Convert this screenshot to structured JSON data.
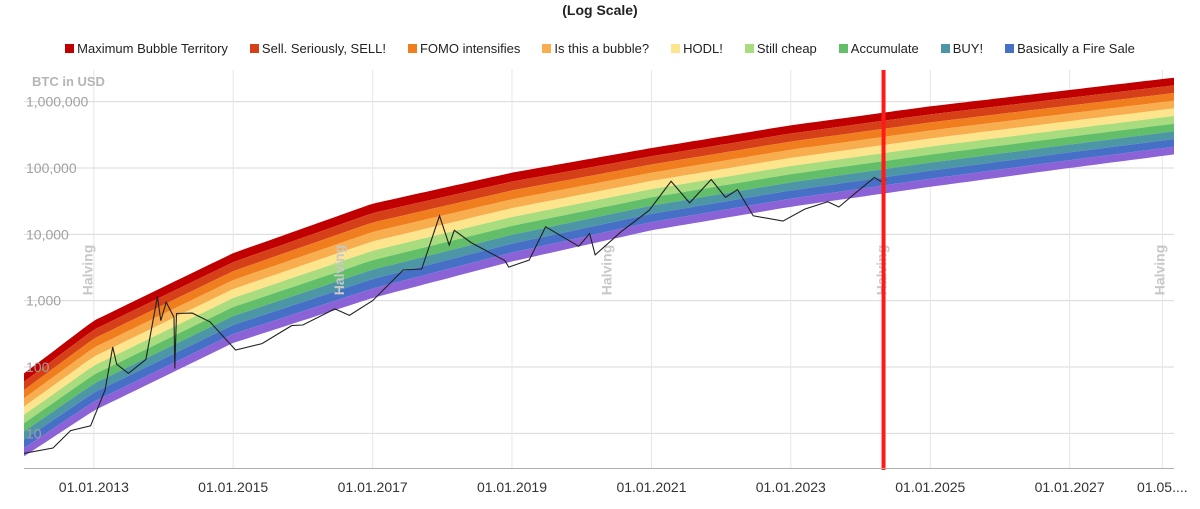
{
  "chart_data": {
    "type": "area",
    "title": "(Log Scale)",
    "scale": "log",
    "ylabel": "BTC in USD",
    "ylim": [
      3,
      3000000
    ],
    "xlim": [
      "2012-01-01",
      "2028-07-01"
    ],
    "x_tick_labels": [
      "01.01.2013",
      "01.01.2015",
      "01.01.2017",
      "01.01.2019",
      "01.01.2021",
      "01.01.2023",
      "01.01.2025",
      "01.01.2027",
      "01.05...."
    ],
    "y_tick_labels": [
      "1,000,000",
      "100,000",
      "10,000",
      "1,000",
      "100",
      "10"
    ],
    "y_ticks": [
      1000000,
      100000,
      10000,
      1000,
      100,
      10
    ],
    "halving_label": "Halving",
    "halving_dates": [
      "2012-11-28",
      "2016-07-09",
      "2020-05-11",
      "2024-04-20",
      "2028-04-15"
    ],
    "current_marker_date": "2024-05-01",
    "grid": true,
    "legend_position": "top",
    "bands": [
      {
        "name": "Maximum Bubble Territory",
        "color": "#c00000"
      },
      {
        "name": "Sell. Seriously, SELL!",
        "color": "#d64018"
      },
      {
        "name": "FOMO intensifies",
        "color": "#f07e1e"
      },
      {
        "name": "Is this a bubble?",
        "color": "#f8ad4e"
      },
      {
        "name": "HODL!",
        "color": "#fde58d"
      },
      {
        "name": "Still cheap",
        "color": "#a8dc7e"
      },
      {
        "name": "Accumulate",
        "color": "#62be68"
      },
      {
        "name": "BUY!",
        "color": "#4c96a6"
      },
      {
        "name": "Basically a Fire Sale",
        "color": "#4670c6"
      }
    ],
    "band_bottom_color": "#8b63d6",
    "rainbow_bottom": [
      {
        "x": "2012-01-01",
        "y": 4.5
      },
      {
        "x": "2013-01-01",
        "y": 22
      },
      {
        "x": "2015-01-01",
        "y": 230
      },
      {
        "x": "2017-01-01",
        "y": 1100
      },
      {
        "x": "2019-01-01",
        "y": 3900
      },
      {
        "x": "2021-01-01",
        "y": 11500
      },
      {
        "x": "2023-01-01",
        "y": 26000
      },
      {
        "x": "2025-01-01",
        "y": 52000
      },
      {
        "x": "2027-01-01",
        "y": 100000
      },
      {
        "x": "2028-07-01",
        "y": 160000
      }
    ],
    "rainbow_top": [
      {
        "x": "2012-01-01",
        "y": 80
      },
      {
        "x": "2013-01-01",
        "y": 500
      },
      {
        "x": "2015-01-01",
        "y": 5200
      },
      {
        "x": "2017-01-01",
        "y": 29000
      },
      {
        "x": "2019-01-01",
        "y": 85000
      },
      {
        "x": "2021-01-01",
        "y": 200000
      },
      {
        "x": "2023-01-01",
        "y": 440000
      },
      {
        "x": "2025-01-01",
        "y": 850000
      },
      {
        "x": "2027-01-01",
        "y": 1500000
      },
      {
        "x": "2028-07-01",
        "y": 2300000
      }
    ],
    "series": [
      {
        "name": "BTC in USD",
        "color": "#222222",
        "points": [
          {
            "x": "2012-01-01",
            "y": 5
          },
          {
            "x": "2012-06-01",
            "y": 6
          },
          {
            "x": "2012-09-01",
            "y": 11
          },
          {
            "x": "2012-12-15",
            "y": 13
          },
          {
            "x": "2013-03-01",
            "y": 45
          },
          {
            "x": "2013-04-10",
            "y": 200
          },
          {
            "x": "2013-05-01",
            "y": 110
          },
          {
            "x": "2013-07-01",
            "y": 80
          },
          {
            "x": "2013-10-01",
            "y": 130
          },
          {
            "x": "2013-11-30",
            "y": 1150
          },
          {
            "x": "2013-12-18",
            "y": 500
          },
          {
            "x": "2014-01-15",
            "y": 950
          },
          {
            "x": "2014-02-25",
            "y": 560
          },
          {
            "x": "2014-03-01",
            "y": 95
          },
          {
            "x": "2014-03-10",
            "y": 640
          },
          {
            "x": "2014-06-01",
            "y": 650
          },
          {
            "x": "2014-09-01",
            "y": 480
          },
          {
            "x": "2015-01-14",
            "y": 180
          },
          {
            "x": "2015-06-01",
            "y": 225
          },
          {
            "x": "2015-11-04",
            "y": 420
          },
          {
            "x": "2016-01-01",
            "y": 430
          },
          {
            "x": "2016-06-17",
            "y": 750
          },
          {
            "x": "2016-09-01",
            "y": 600
          },
          {
            "x": "2017-01-01",
            "y": 1000
          },
          {
            "x": "2017-06-10",
            "y": 2900
          },
          {
            "x": "2017-09-15",
            "y": 3000
          },
          {
            "x": "2017-12-17",
            "y": 19000
          },
          {
            "x": "2018-02-06",
            "y": 6900
          },
          {
            "x": "2018-03-05",
            "y": 11500
          },
          {
            "x": "2018-06-01",
            "y": 7500
          },
          {
            "x": "2018-11-25",
            "y": 4000
          },
          {
            "x": "2018-12-15",
            "y": 3200
          },
          {
            "x": "2019-04-01",
            "y": 4100
          },
          {
            "x": "2019-06-26",
            "y": 13000
          },
          {
            "x": "2019-12-17",
            "y": 6600
          },
          {
            "x": "2020-02-12",
            "y": 10300
          },
          {
            "x": "2020-03-12",
            "y": 4900
          },
          {
            "x": "2020-07-27",
            "y": 11000
          },
          {
            "x": "2020-12-20",
            "y": 23000
          },
          {
            "x": "2021-04-14",
            "y": 63000
          },
          {
            "x": "2021-07-20",
            "y": 29800
          },
          {
            "x": "2021-11-10",
            "y": 67000
          },
          {
            "x": "2022-01-24",
            "y": 36000
          },
          {
            "x": "2022-03-28",
            "y": 47000
          },
          {
            "x": "2022-06-18",
            "y": 19000
          },
          {
            "x": "2022-11-21",
            "y": 15800
          },
          {
            "x": "2023-03-15",
            "y": 24000
          },
          {
            "x": "2023-07-14",
            "y": 31000
          },
          {
            "x": "2023-09-10",
            "y": 25800
          },
          {
            "x": "2023-12-10",
            "y": 43000
          },
          {
            "x": "2024-03-14",
            "y": 72000
          },
          {
            "x": "2024-04-15",
            "y": 63000
          },
          {
            "x": "2024-05-15",
            "y": 67000
          }
        ]
      }
    ]
  }
}
